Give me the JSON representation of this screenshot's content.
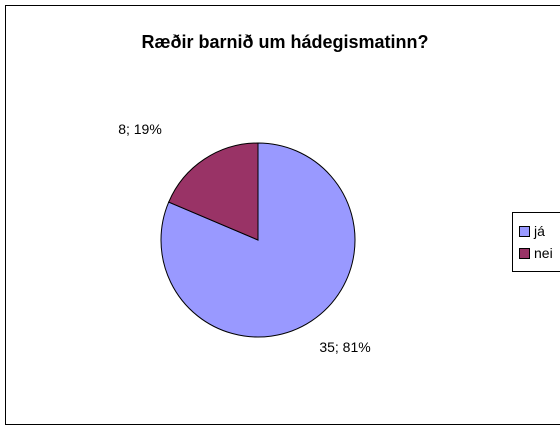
{
  "chart_data": {
    "type": "pie",
    "title": "Ræðir barnið um hádegismatinn?",
    "categories": [
      "já",
      "nei"
    ],
    "values": [
      35,
      8
    ],
    "percentages": [
      81,
      19
    ],
    "data_labels": [
      "35; 81%",
      "8; 19%"
    ],
    "colors": [
      "#9999ff",
      "#993366"
    ],
    "legend_position": "right",
    "start_angle": "12 o'clock, clockwise"
  }
}
